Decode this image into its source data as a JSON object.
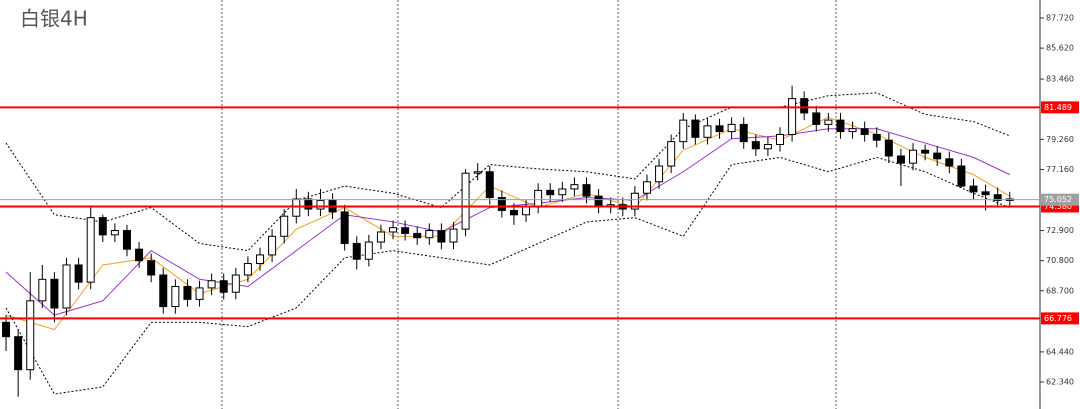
{
  "chart_data": {
    "type": "candlestick",
    "title": "白银4H",
    "ylim": [
      60.457,
      88.975
    ],
    "xlim": [
      -0.5,
      85.5
    ],
    "yticks": [
      {
        "value": 87.72,
        "label": "87.720"
      },
      {
        "value": 85.62,
        "label": "85.620"
      },
      {
        "value": 83.46,
        "label": "83.460"
      },
      {
        "value": 79.26,
        "label": "79.260"
      },
      {
        "value": 77.16,
        "label": "77.160"
      },
      {
        "value": 72.9,
        "label": "72.900"
      },
      {
        "value": 70.8,
        "label": "70.800"
      },
      {
        "value": 68.7,
        "label": "68.700"
      },
      {
        "value": 64.44,
        "label": "64.440"
      },
      {
        "value": 62.34,
        "label": "62.340"
      }
    ],
    "up_color": "#ffffff",
    "down_color": "#000000",
    "open": [
      66.5,
      65.5,
      63.2,
      68.0,
      69.5,
      67.5,
      70.5,
      69.3,
      73.8,
      72.6,
      72.9,
      71.6,
      70.8,
      69.8,
      67.6,
      69.0,
      68.1,
      68.9,
      69.4,
      68.6,
      69.8,
      70.6,
      71.2,
      72.5,
      73.9,
      75.1,
      74.4,
      75.0,
      74.2,
      72.0,
      70.9,
      72.1,
      72.8,
      73.1,
      72.7,
      72.4,
      72.9,
      72.1,
      73.0,
      76.9,
      77.0,
      75.2,
      74.3,
      74.0,
      74.6,
      75.7,
      75.4,
      75.8,
      76.1,
      75.3,
      74.6,
      74.7,
      74.4,
      75.5,
      76.3,
      77.4,
      79.1,
      80.6,
      79.4,
      80.2,
      79.8,
      80.3,
      79.1,
      78.6,
      78.9,
      79.6,
      82.1,
      81.1,
      80.3,
      80.6,
      79.8,
      80.0,
      79.6,
      79.2,
      78.1,
      77.6,
      78.5,
      78.3,
      77.9,
      77.4,
      76.0,
      75.6,
      75.4,
      75.0
    ],
    "high": [
      67.0,
      66.0,
      70.0,
      70.5,
      70.0,
      71.0,
      71.0,
      74.5,
      74.0,
      73.4,
      73.3,
      72.1,
      71.3,
      70.3,
      69.5,
      69.5,
      69.4,
      69.9,
      69.9,
      70.3,
      71.1,
      71.7,
      73.0,
      74.4,
      75.8,
      75.6,
      75.8,
      75.5,
      74.7,
      72.5,
      72.6,
      73.3,
      73.6,
      73.6,
      73.2,
      73.4,
      73.4,
      73.5,
      77.2,
      77.6,
      77.4,
      75.7,
      74.8,
      75.1,
      76.2,
      76.2,
      76.3,
      76.6,
      76.6,
      75.8,
      75.2,
      75.2,
      76.0,
      76.8,
      77.9,
      79.6,
      81.1,
      81.0,
      80.7,
      80.7,
      80.8,
      80.8,
      79.6,
      79.4,
      80.1,
      83.0,
      82.6,
      81.6,
      81.1,
      81.1,
      80.5,
      80.5,
      80.1,
      79.7,
      78.6,
      79.0,
      78.9,
      78.8,
      78.4,
      77.9,
      76.5,
      76.1,
      75.9,
      75.6
    ],
    "low": [
      64.5,
      61.3,
      62.5,
      67.5,
      66.5,
      67.0,
      68.8,
      68.8,
      72.1,
      72.1,
      71.1,
      70.3,
      69.3,
      67.1,
      67.1,
      67.6,
      67.6,
      68.4,
      68.1,
      68.1,
      69.3,
      70.1,
      70.7,
      72.0,
      73.4,
      73.9,
      73.9,
      73.7,
      71.5,
      70.2,
      70.4,
      71.6,
      72.3,
      72.2,
      71.9,
      71.9,
      71.6,
      71.6,
      72.5,
      76.4,
      74.7,
      73.8,
      73.3,
      73.5,
      74.1,
      74.9,
      74.9,
      75.3,
      74.8,
      74.1,
      74.1,
      73.9,
      73.9,
      75.0,
      75.8,
      76.9,
      78.6,
      78.9,
      78.9,
      79.3,
      79.3,
      78.6,
      78.1,
      78.1,
      78.4,
      79.1,
      80.6,
      79.8,
      79.8,
      79.3,
      79.3,
      79.1,
      78.7,
      77.6,
      76.0,
      77.1,
      77.8,
      77.4,
      76.9,
      75.9,
      75.1,
      74.3,
      74.5,
      74.6
    ],
    "close": [
      65.5,
      63.2,
      68.0,
      69.5,
      67.5,
      70.5,
      69.3,
      73.8,
      72.6,
      72.9,
      71.6,
      70.8,
      69.8,
      67.6,
      69.0,
      68.1,
      68.9,
      69.4,
      68.6,
      69.8,
      70.6,
      71.2,
      72.5,
      73.9,
      75.1,
      74.4,
      75.0,
      74.2,
      72.0,
      70.9,
      72.1,
      72.8,
      73.1,
      72.7,
      72.4,
      72.9,
      72.1,
      73.0,
      76.9,
      77.0,
      75.2,
      74.3,
      74.0,
      74.6,
      75.7,
      75.4,
      75.8,
      76.1,
      75.3,
      74.6,
      74.7,
      74.4,
      75.5,
      76.3,
      77.4,
      79.1,
      80.6,
      79.4,
      80.2,
      79.8,
      80.3,
      79.1,
      78.6,
      78.9,
      79.6,
      82.1,
      81.1,
      80.3,
      80.6,
      79.8,
      80.0,
      79.6,
      79.2,
      78.1,
      77.6,
      78.5,
      78.3,
      77.9,
      77.4,
      76.0,
      75.6,
      75.4,
      75.0,
      75.1
    ],
    "overlays": [
      {
        "color": "#f0a020",
        "dashed": false,
        "x": [
          0,
          4,
          8,
          12,
          16,
          20,
          24,
          28,
          32,
          36,
          40,
          44,
          48,
          52,
          56,
          60,
          64,
          68,
          72,
          76,
          80,
          83
        ],
        "values": [
          67,
          66,
          70.5,
          71,
          68.5,
          69.5,
          73,
          74.5,
          72.5,
          72.5,
          76,
          74.5,
          75.5,
          74.5,
          78.5,
          80,
          79.2,
          80.8,
          79.6,
          78,
          76.8,
          75.3
        ]
      },
      {
        "color": "#9b30d0",
        "dashed": false,
        "x": [
          0,
          4,
          8,
          12,
          16,
          20,
          24,
          28,
          32,
          36,
          40,
          44,
          48,
          52,
          56,
          60,
          64,
          68,
          72,
          76,
          80,
          83
        ],
        "values": [
          70,
          67,
          68,
          71.5,
          69.5,
          69,
          71.5,
          74,
          73.5,
          72.8,
          74.5,
          74.8,
          75.2,
          75,
          77,
          79.3,
          79.5,
          80,
          80,
          79,
          78,
          76.8
        ]
      },
      {
        "color": "#000000",
        "dashed": true,
        "x": [
          0,
          4,
          8,
          12,
          16,
          20,
          24,
          28,
          32,
          36,
          40,
          44,
          48,
          52,
          56,
          60,
          64,
          68,
          72,
          76,
          80,
          83
        ],
        "values": [
          79,
          74,
          73.5,
          74.5,
          72,
          71.5,
          75,
          76,
          75.5,
          74.5,
          77.5,
          77.2,
          77,
          76.5,
          80,
          81.5,
          81.5,
          82.3,
          82.5,
          81,
          80.5,
          79.5
        ]
      },
      {
        "color": "#000000",
        "dashed": true,
        "x": [
          0,
          4,
          8,
          12,
          16,
          20,
          24,
          28,
          32,
          36,
          40,
          44,
          48,
          52,
          56,
          60,
          64,
          68,
          72,
          76,
          80,
          83
        ],
        "values": [
          67.5,
          61.5,
          62,
          66.5,
          66.5,
          66.2,
          67.5,
          71,
          71.5,
          71,
          70.5,
          72,
          73.5,
          73.8,
          72.5,
          77.5,
          78,
          77,
          78,
          77,
          75.5,
          74.5
        ]
      }
    ],
    "levels": [
      {
        "value": 81.489,
        "color": "#ff0000"
      },
      {
        "value": 74.58,
        "label": "74.580",
        "color": "#ff0000"
      },
      {
        "value": 66.776,
        "color": "#ff0000"
      },
      {
        "value": 75.052,
        "color": "#a0a0a0"
      }
    ]
  }
}
